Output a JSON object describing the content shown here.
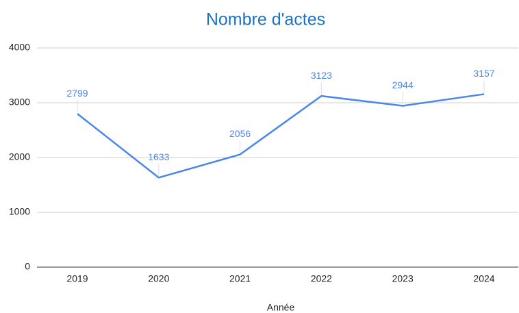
{
  "chart_data": {
    "type": "line",
    "title": "Nombre d'actes",
    "x_label": "Année",
    "categories": [
      "2019",
      "2020",
      "2021",
      "2022",
      "2023",
      "2024"
    ],
    "series": [
      {
        "name": "Nombre d'actes",
        "color": "#4a86e8",
        "values": [
          2799,
          1633,
          2056,
          3123,
          2944,
          3157
        ]
      }
    ],
    "ylim": [
      0,
      4000
    ],
    "yticks": [
      0,
      1000,
      2000,
      3000,
      4000
    ],
    "grid": true
  }
}
